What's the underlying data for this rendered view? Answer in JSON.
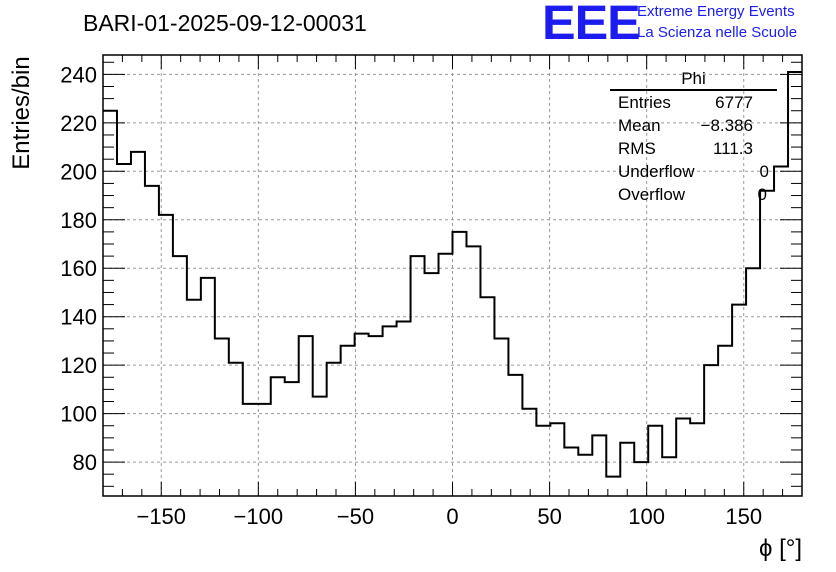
{
  "title": "BARI-01-2025-09-12-00031",
  "logo": {
    "text": "EEE",
    "line1": "Extreme Energy Events",
    "line2": "La Scienza nelle Scuole",
    "color": "#1c1cf0"
  },
  "stats": {
    "name": "Phi",
    "rows": [
      {
        "label": "Entries",
        "value": "6777"
      },
      {
        "label": "Mean",
        "value": "−8.386"
      },
      {
        "label": "RMS",
        "value": "111.3"
      },
      {
        "label": "Underflow",
        "value": "0"
      },
      {
        "label": "Overflow",
        "value": "0"
      }
    ]
  },
  "chart_data": {
    "type": "histogram-step",
    "xlabel": "ϕ [°]",
    "ylabel": "Entries/bin",
    "xlim": [
      -180,
      180
    ],
    "ylim": [
      66,
      248
    ],
    "bin_width": 7.2,
    "x_ticks": [
      -150,
      -100,
      -50,
      0,
      50,
      100,
      150
    ],
    "x_tick_labels": [
      "−150",
      "−100",
      "−50",
      "0",
      "50",
      "100",
      "150"
    ],
    "y_ticks": [
      80,
      100,
      120,
      140,
      160,
      180,
      200,
      220,
      240
    ],
    "y_tick_labels": [
      "80",
      "100",
      "120",
      "140",
      "160",
      "180",
      "200",
      "220",
      "240"
    ],
    "grid": true,
    "line_color": "#000000",
    "values": [
      225,
      203,
      208,
      194,
      182,
      165,
      147,
      156,
      131,
      121,
      104,
      104,
      115,
      113,
      132,
      107,
      121,
      128,
      133,
      132,
      136,
      138,
      165,
      158,
      166,
      175,
      169,
      148,
      131,
      116,
      102,
      95,
      96,
      86,
      83,
      91,
      74,
      88,
      80,
      95,
      82,
      98,
      96,
      120,
      128,
      145,
      160,
      192,
      202,
      241
    ]
  }
}
